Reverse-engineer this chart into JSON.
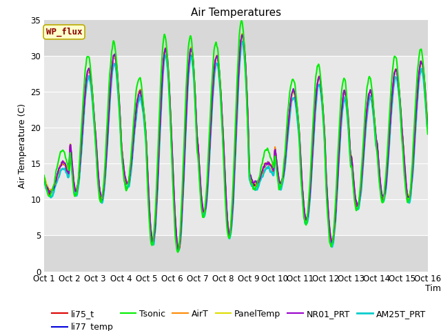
{
  "title": "Air Temperatures",
  "xlabel": "Time",
  "ylabel": "Air Temperature (C)",
  "ylim": [
    0,
    35
  ],
  "xlim_days": 15,
  "x_tick_labels": [
    "Oct 1",
    "Oct 2",
    "Oct 3",
    "Oct 4",
    "Oct 5",
    "Oct 6",
    "Oct 7",
    "Oct 8",
    "Oct 9",
    "Oct 10",
    "Oct 11",
    "Oct 12",
    "Oct 13",
    "Oct 14",
    "Oct 15",
    "Oct 16"
  ],
  "legend_entries": [
    "li75_t",
    "li77_temp",
    "Tsonic",
    "AirT",
    "PanelTemp",
    "NR01_PRT",
    "AM25T_PRT"
  ],
  "line_colors": [
    "#dd0000",
    "#0000dd",
    "#00ee00",
    "#ff8800",
    "#dddd00",
    "#9900cc",
    "#00cccc"
  ],
  "line_widths": [
    1.2,
    1.2,
    1.5,
    1.2,
    1.2,
    1.5,
    2.0
  ],
  "annotation_text": "WP_flux",
  "bg_outer": "#ffffff",
  "bg_plot": "#d8d8d8",
  "bg_band_light": "#e8e8e8",
  "grid_color": "#ffffff",
  "title_fontsize": 11,
  "label_fontsize": 9,
  "tick_fontsize": 8.5,
  "legend_fontsize": 9,
  "daily_mins": [
    11,
    11,
    10,
    12,
    4,
    3,
    8,
    5,
    12,
    12,
    7,
    4,
    9,
    10,
    10
  ],
  "daily_maxs": [
    15,
    28,
    30,
    25,
    31,
    31,
    30,
    33,
    15,
    25,
    27,
    25,
    25,
    28,
    29
  ]
}
